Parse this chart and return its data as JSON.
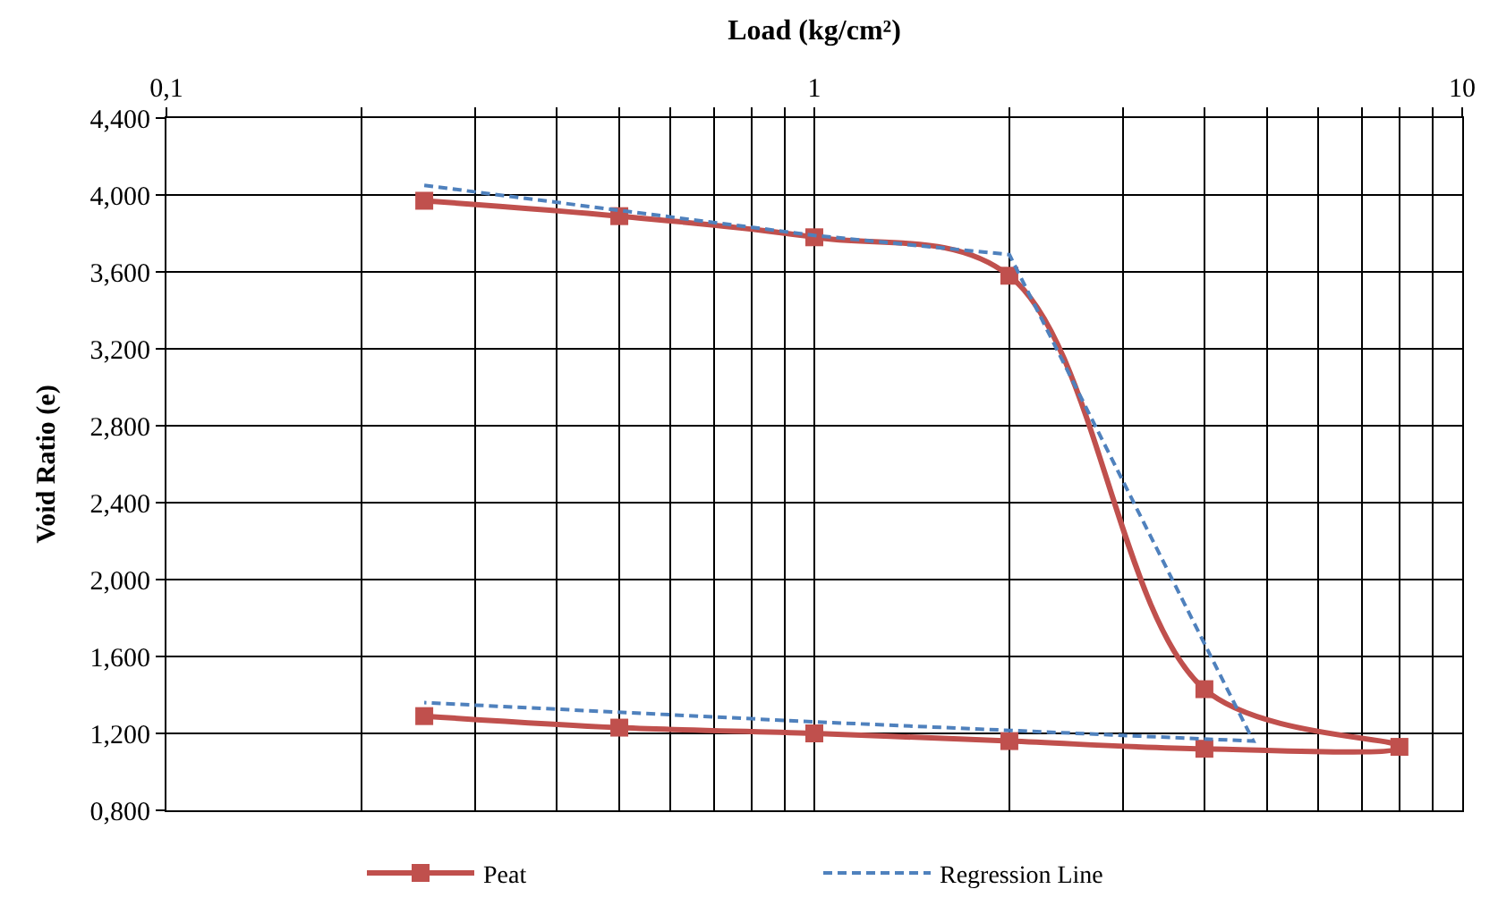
{
  "chart_data": {
    "type": "line",
    "xlabel": "Load (kg/cm²)",
    "ylabel": "Void Ratio (e)",
    "log": "x",
    "xlim": [
      0.1,
      10
    ],
    "xticks": [
      {
        "value": 0.1,
        "label": "0,1"
      },
      {
        "value": 0.2,
        "label": null
      },
      {
        "value": 0.3,
        "label": null
      },
      {
        "value": 0.4,
        "label": null
      },
      {
        "value": 0.5,
        "label": null
      },
      {
        "value": 0.6,
        "label": null
      },
      {
        "value": 0.7,
        "label": null
      },
      {
        "value": 0.8,
        "label": null
      },
      {
        "value": 0.9,
        "label": null
      },
      1,
      {
        "value": 2,
        "label": null
      },
      {
        "value": 3,
        "label": null
      },
      {
        "value": 4,
        "label": null
      },
      {
        "value": 5,
        "label": null
      },
      {
        "value": 6,
        "label": null
      },
      {
        "value": 7,
        "label": null
      },
      {
        "value": 8,
        "label": null
      },
      {
        "value": 9,
        "label": null
      },
      10
    ],
    "ylim": [
      0.8,
      4.4
    ],
    "yticks": [
      {
        "value": 0.8,
        "label": "0,800"
      },
      {
        "value": 1.2,
        "label": "1,200"
      },
      {
        "value": 1.6,
        "label": "1,600"
      },
      {
        "value": 2.0,
        "label": "2,000"
      },
      {
        "value": 2.4,
        "label": "2,400"
      },
      {
        "value": 2.8,
        "label": "2,800"
      },
      {
        "value": 3.2,
        "label": "3,200"
      },
      {
        "value": 3.6,
        "label": "3,600"
      },
      {
        "value": 4.0,
        "label": "4,000"
      },
      {
        "value": 4.4,
        "label": "4,400"
      }
    ],
    "grid": true,
    "legend": "bottom",
    "series": [
      {
        "name": "Peat",
        "color": "#c0504d",
        "marker": "square",
        "line_style": "solid",
        "x": [
          0.25,
          0.5,
          1,
          2,
          4,
          8,
          4,
          2,
          1,
          0.5,
          0.25
        ],
        "values": [
          3.97,
          3.89,
          3.78,
          3.58,
          1.43,
          1.13,
          1.12,
          1.16,
          1.2,
          1.23,
          1.29
        ]
      },
      {
        "name": "Regression Line",
        "color": "#4f81bd",
        "marker": "none",
        "line_style": "dashed",
        "x": [
          0.25,
          1,
          2,
          4.76,
          1,
          0.25
        ],
        "values": [
          4.05,
          3.79,
          3.69,
          1.16,
          1.26,
          1.36
        ]
      }
    ]
  }
}
